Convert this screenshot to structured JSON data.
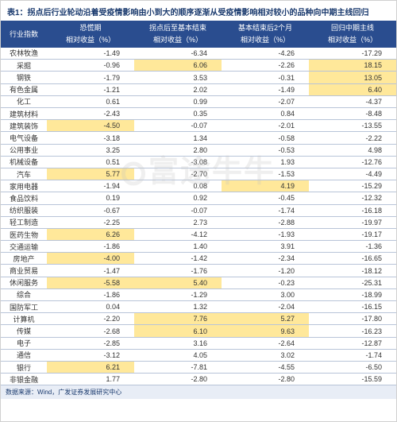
{
  "title": "表1：拐点后行业轮动沿着受疫情影响由小到大的顺序逐渐从受疫情影响相对较小的品种向中期主线回归",
  "header": {
    "row_label": "行业指数",
    "sub_label": "相对收益（%）",
    "cols": [
      "恐慌期",
      "拐点后至基本结束",
      "基本结束后2个月",
      "回归中期主线"
    ]
  },
  "rows": [
    {
      "label": "农林牧渔",
      "v": [
        "-1.49",
        "-6.34",
        "-4.26",
        "-17.29"
      ],
      "hl": [
        0,
        0,
        0,
        0
      ]
    },
    {
      "label": "采掘",
      "v": [
        "-0.96",
        "6.06",
        "-2.26",
        "18.15"
      ],
      "hl": [
        0,
        1,
        0,
        1
      ]
    },
    {
      "label": "钢铁",
      "v": [
        "-1.79",
        "3.53",
        "-0.31",
        "13.05"
      ],
      "hl": [
        0,
        0,
        0,
        1
      ]
    },
    {
      "label": "有色金属",
      "v": [
        "-1.21",
        "2.02",
        "-1.49",
        "6.40"
      ],
      "hl": [
        0,
        0,
        0,
        1
      ]
    },
    {
      "label": "化工",
      "v": [
        "0.61",
        "0.99",
        "-2.07",
        "-4.37"
      ],
      "hl": [
        0,
        0,
        0,
        0
      ]
    },
    {
      "label": "建筑材料",
      "v": [
        "-2.43",
        "0.35",
        "0.84",
        "-8.48"
      ],
      "hl": [
        0,
        0,
        0,
        0
      ]
    },
    {
      "label": "建筑装饰",
      "v": [
        "-4.50",
        "-0.07",
        "-2.01",
        "-13.55"
      ],
      "hl": [
        1,
        0,
        0,
        0
      ]
    },
    {
      "label": "电气设备",
      "v": [
        "-3.18",
        "1.34",
        "-0.58",
        "-2.22"
      ],
      "hl": [
        0,
        0,
        0,
        0
      ]
    },
    {
      "label": "公用事业",
      "v": [
        "3.25",
        "2.80",
        "-0.53",
        "4.98"
      ],
      "hl": [
        0,
        0,
        0,
        0
      ]
    },
    {
      "label": "机械设备",
      "v": [
        "0.51",
        "-3.08",
        "1.93",
        "-12.76"
      ],
      "hl": [
        0,
        0,
        0,
        0
      ]
    },
    {
      "label": "汽车",
      "v": [
        "5.77",
        "-2.70",
        "-1.53",
        "-4.49"
      ],
      "hl": [
        1,
        0,
        0,
        0
      ]
    },
    {
      "label": "家用电器",
      "v": [
        "-1.94",
        "0.08",
        "4.19",
        "-15.29"
      ],
      "hl": [
        0,
        0,
        1,
        0
      ]
    },
    {
      "label": "食品饮料",
      "v": [
        "0.19",
        "0.92",
        "-0.45",
        "-12.32"
      ],
      "hl": [
        0,
        0,
        0,
        0
      ]
    },
    {
      "label": "纺织服装",
      "v": [
        "-0.67",
        "-0.07",
        "-1.74",
        "-16.18"
      ],
      "hl": [
        0,
        0,
        0,
        0
      ]
    },
    {
      "label": "轻工制造",
      "v": [
        "-2.25",
        "2.73",
        "-2.88",
        "-19.97"
      ],
      "hl": [
        0,
        0,
        0,
        0
      ]
    },
    {
      "label": "医药生物",
      "v": [
        "6.26",
        "-4.12",
        "-1.93",
        "-19.17"
      ],
      "hl": [
        1,
        0,
        0,
        0
      ]
    },
    {
      "label": "交通运输",
      "v": [
        "-1.86",
        "1.40",
        "3.91",
        "-1.36"
      ],
      "hl": [
        0,
        0,
        0,
        0
      ]
    },
    {
      "label": "房地产",
      "v": [
        "-4.00",
        "-1.42",
        "-2.34",
        "-16.65"
      ],
      "hl": [
        1,
        0,
        0,
        0
      ]
    },
    {
      "label": "商业贸易",
      "v": [
        "-1.47",
        "-1.76",
        "-1.20",
        "-18.12"
      ],
      "hl": [
        0,
        0,
        0,
        0
      ]
    },
    {
      "label": "休闲服务",
      "v": [
        "-5.58",
        "5.40",
        "-0.23",
        "-25.31"
      ],
      "hl": [
        1,
        1,
        0,
        0
      ]
    },
    {
      "label": "综合",
      "v": [
        "-1.86",
        "-1.29",
        "3.00",
        "-18.99"
      ],
      "hl": [
        0,
        0,
        0,
        0
      ]
    },
    {
      "label": "国防军工",
      "v": [
        "0.04",
        "1.32",
        "-2.04",
        "-16.15"
      ],
      "hl": [
        0,
        0,
        0,
        0
      ]
    },
    {
      "label": "计算机",
      "v": [
        "-2.20",
        "7.76",
        "5.27",
        "-17.80"
      ],
      "hl": [
        0,
        1,
        1,
        0
      ]
    },
    {
      "label": "传媒",
      "v": [
        "-2.68",
        "6.10",
        "9.63",
        "-16.23"
      ],
      "hl": [
        0,
        1,
        1,
        0
      ]
    },
    {
      "label": "电子",
      "v": [
        "-2.85",
        "3.16",
        "-2.64",
        "-12.87"
      ],
      "hl": [
        0,
        0,
        0,
        0
      ]
    },
    {
      "label": "通信",
      "v": [
        "-3.12",
        "4.05",
        "3.02",
        "-1.74"
      ],
      "hl": [
        0,
        0,
        0,
        0
      ]
    },
    {
      "label": "银行",
      "v": [
        "6.21",
        "-7.81",
        "-4.55",
        "-6.50"
      ],
      "hl": [
        1,
        0,
        0,
        0
      ]
    },
    {
      "label": "非银金融",
      "v": [
        "1.77",
        "-2.80",
        "-2.80",
        "-15.59"
      ],
      "hl": [
        0,
        0,
        0,
        0
      ]
    }
  ],
  "footer": "数据来源：Wind，广发证券发展研究中心",
  "watermark": "富途牛牛",
  "colors": {
    "header_bg": "#2a4d8f",
    "highlight": "#ffe89a",
    "border": "#b8c4d8"
  }
}
